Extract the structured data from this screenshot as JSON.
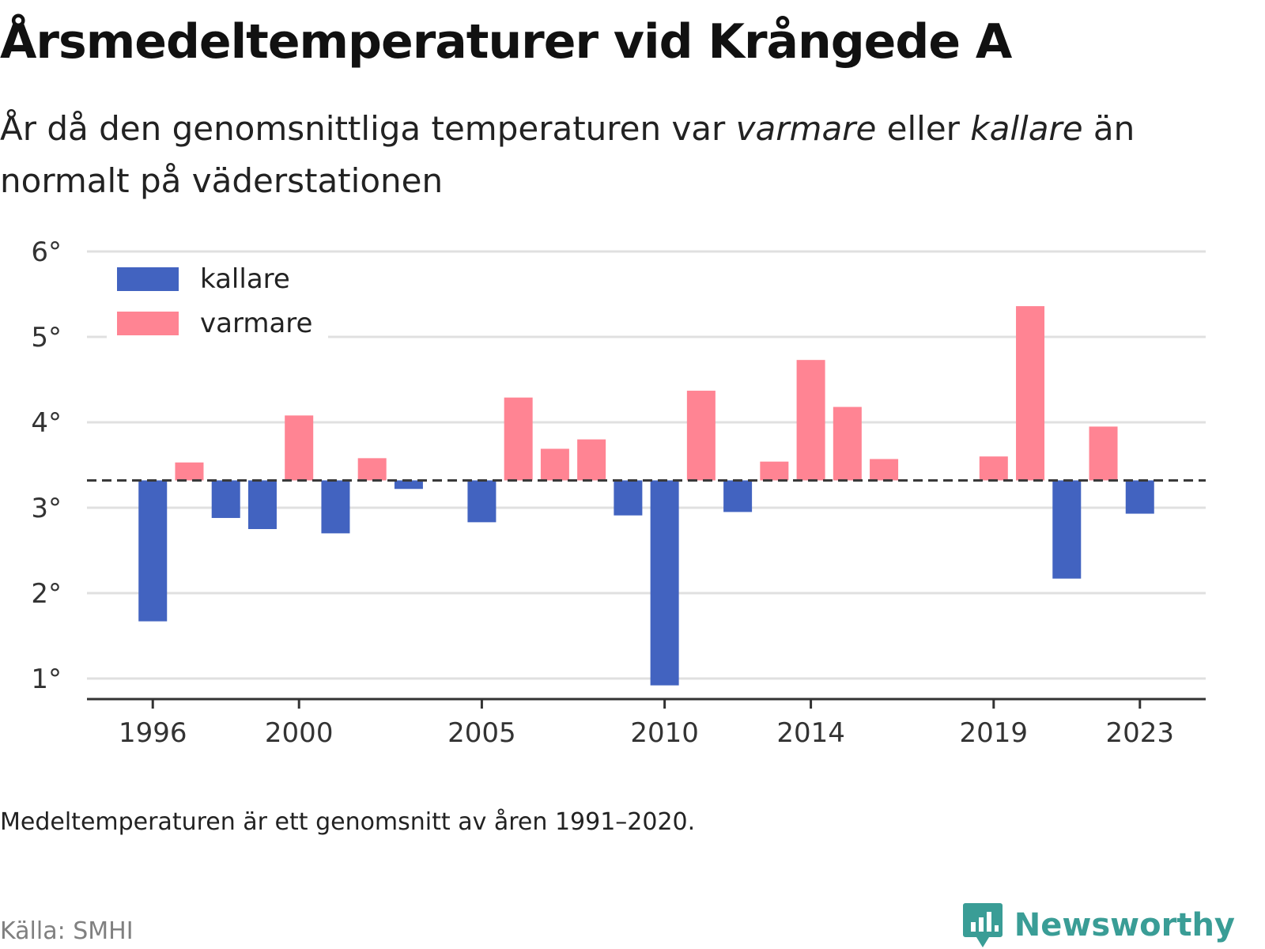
{
  "title": "Årsmedeltemperaturer vid Krångede A",
  "subtitle": {
    "part1": "År då den genomsnittliga temperaturen var ",
    "warm_word": "varmare",
    "part2": " eller ",
    "cold_word": "kallare",
    "part3": " än normalt på väderstationen"
  },
  "note": "Medeltemperaturen är ett genomsnitt av åren 1991–2020.",
  "source": "Källa: SMHI",
  "brand": {
    "name": "Newsworthy",
    "icon": "newsworthy-logo-icon",
    "color": "#3a9d96"
  },
  "chart_data": {
    "type": "bar",
    "baseline": 3.32,
    "ylim": [
      0.75,
      6.0
    ],
    "yticks": [
      {
        "value": 1,
        "label": "1°"
      },
      {
        "value": 2,
        "label": "2°"
      },
      {
        "value": 3,
        "label": "3°"
      },
      {
        "value": 4,
        "label": "4°"
      },
      {
        "value": 5,
        "label": "5°"
      },
      {
        "value": 6,
        "label": "6°"
      }
    ],
    "xlim": [
      1994.2,
      2024.8
    ],
    "xticks": [
      {
        "value": 1996,
        "label": "1996"
      },
      {
        "value": 2000,
        "label": "2000"
      },
      {
        "value": 2005,
        "label": "2005"
      },
      {
        "value": 2010,
        "label": "2010"
      },
      {
        "value": 2014,
        "label": "2014"
      },
      {
        "value": 2019,
        "label": "2019"
      },
      {
        "value": 2023,
        "label": "2023"
      }
    ],
    "grid": true,
    "legend_position": "top-left",
    "legend": [
      {
        "key": "kallare",
        "label": "kallare",
        "color": "#4263c0"
      },
      {
        "key": "varmare",
        "label": "varmare",
        "color": "#ff8493"
      }
    ],
    "points": [
      {
        "year": 1996,
        "value": 1.67
      },
      {
        "year": 1997,
        "value": 3.53
      },
      {
        "year": 1998,
        "value": 2.88
      },
      {
        "year": 1999,
        "value": 2.75
      },
      {
        "year": 2000,
        "value": 4.08
      },
      {
        "year": 2001,
        "value": 2.7
      },
      {
        "year": 2002,
        "value": 3.58
      },
      {
        "year": 2003,
        "value": 3.22
      },
      {
        "year": 2005,
        "value": 2.83
      },
      {
        "year": 2006,
        "value": 4.29
      },
      {
        "year": 2007,
        "value": 3.69
      },
      {
        "year": 2008,
        "value": 3.8
      },
      {
        "year": 2009,
        "value": 2.91
      },
      {
        "year": 2010,
        "value": 0.92
      },
      {
        "year": 2011,
        "value": 4.37
      },
      {
        "year": 2012,
        "value": 2.95
      },
      {
        "year": 2013,
        "value": 3.54
      },
      {
        "year": 2014,
        "value": 4.73
      },
      {
        "year": 2015,
        "value": 4.18
      },
      {
        "year": 2016,
        "value": 3.57
      },
      {
        "year": 2019,
        "value": 3.6
      },
      {
        "year": 2020,
        "value": 5.36
      },
      {
        "year": 2021,
        "value": 2.17
      },
      {
        "year": 2022,
        "value": 3.95
      },
      {
        "year": 2023,
        "value": 2.93
      }
    ]
  }
}
